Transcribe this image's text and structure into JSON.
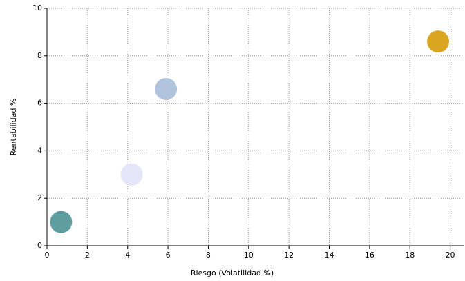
{
  "chart_data": {
    "type": "scatter",
    "x": [
      0.7,
      4.2,
      5.9,
      19.4
    ],
    "values": [
      1.0,
      3.0,
      6.6,
      8.6
    ],
    "colors": [
      "#5f9ea0",
      "#e6e6fa",
      "#b0c4de",
      "#daa520"
    ],
    "xlim": [
      0,
      20.7
    ],
    "ylim": [
      0,
      10
    ],
    "xticks": [
      0,
      2,
      4,
      6,
      8,
      10,
      12,
      14,
      16,
      18,
      20
    ],
    "yticks": [
      0,
      2,
      4,
      6,
      8,
      10
    ],
    "xlabel": "Riesgo (Volatilidad %)",
    "ylabel": "Rentabilidad %",
    "grid": true
  }
}
